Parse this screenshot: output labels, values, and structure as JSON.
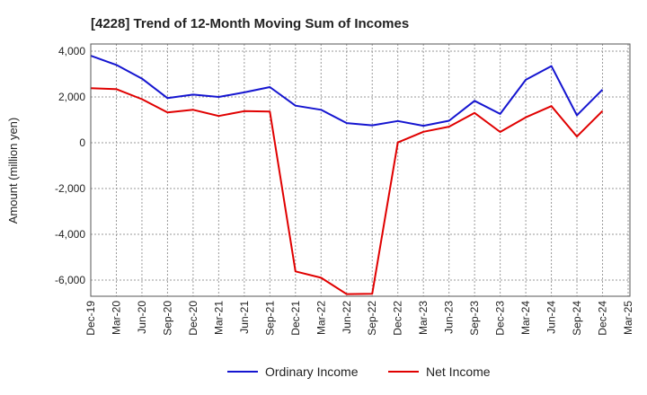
{
  "chart_data": {
    "type": "line",
    "title": "[4228]  Trend of 12-Month Moving Sum of Incomes",
    "xlabel": "",
    "ylabel": "Amount (million yen)",
    "ylim": [
      -6800,
      4000
    ],
    "yticks": [
      4000,
      2000,
      0,
      -2000,
      -4000,
      -6000
    ],
    "ytick_labels": [
      "4,000",
      "2,000",
      "0",
      "-2,000",
      "-4,000",
      "-6,000"
    ],
    "grid": true,
    "legend_position": "bottom-center",
    "x": [
      "Dec-19",
      "Mar-20",
      "Jun-20",
      "Sep-20",
      "Dec-20",
      "Mar-21",
      "Jun-21",
      "Sep-21",
      "Dec-21",
      "Mar-22",
      "Jun-22",
      "Sep-22",
      "Dec-22",
      "Mar-23",
      "Jun-23",
      "Sep-23",
      "Dec-23",
      "Mar-24",
      "Jun-24",
      "Sep-24",
      "Dec-24",
      "Mar-25"
    ],
    "series": [
      {
        "name": "Ordinary Income",
        "color": "#1515d0",
        "values": [
          3800,
          3400,
          2800,
          1950,
          2100,
          2000,
          2200,
          2430,
          1620,
          1440,
          860,
          760,
          950,
          740,
          960,
          1830,
          1260,
          2750,
          3350,
          1200,
          2320,
          null
        ]
      },
      {
        "name": "Net Income",
        "color": "#e00000",
        "values": [
          2380,
          2340,
          1900,
          1320,
          1440,
          1170,
          1380,
          1360,
          -5620,
          -5900,
          -6610,
          -6600,
          10,
          480,
          700,
          1300,
          470,
          1110,
          1600,
          270,
          1390,
          null
        ]
      }
    ]
  }
}
